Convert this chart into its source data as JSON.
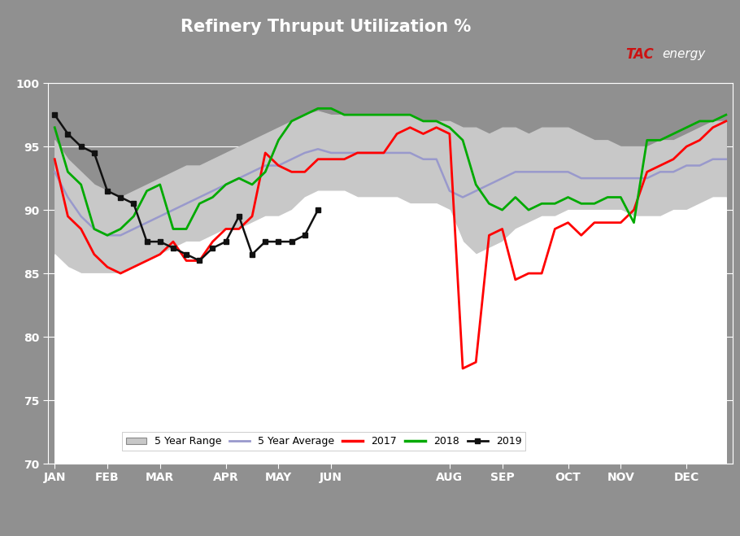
{
  "title": "Refinery Thruput Utilization %",
  "ylim": [
    70,
    100
  ],
  "yticks": [
    70,
    75,
    80,
    85,
    90,
    95,
    100
  ],
  "months": [
    "JAN",
    "FEB",
    "MAR",
    "APR",
    "MAY",
    "JUN",
    "AUG",
    "SEP",
    "OCT",
    "NOV",
    "DEC"
  ],
  "month_positions": [
    1,
    5,
    9,
    14,
    18,
    22,
    31,
    35,
    40,
    44,
    49
  ],
  "x": [
    1,
    2,
    3,
    4,
    5,
    6,
    7,
    8,
    9,
    10,
    11,
    12,
    13,
    14,
    15,
    16,
    17,
    18,
    19,
    20,
    21,
    22,
    23,
    24,
    25,
    26,
    27,
    28,
    29,
    30,
    31,
    32,
    33,
    34,
    35,
    36,
    37,
    38,
    39,
    40,
    41,
    42,
    43,
    44,
    45,
    46,
    47,
    48,
    49,
    50,
    51,
    52
  ],
  "range_high": [
    95.5,
    94.0,
    93.0,
    92.0,
    91.5,
    91.0,
    91.5,
    92.0,
    92.5,
    93.0,
    93.5,
    93.5,
    94.0,
    94.5,
    95.0,
    95.5,
    96.0,
    96.5,
    97.0,
    97.5,
    97.8,
    97.5,
    97.5,
    97.5,
    97.5,
    97.5,
    97.5,
    97.5,
    97.0,
    97.0,
    97.0,
    96.5,
    96.5,
    96.0,
    96.5,
    96.5,
    96.0,
    96.5,
    96.5,
    96.5,
    96.0,
    95.5,
    95.5,
    95.0,
    95.0,
    95.0,
    95.5,
    95.5,
    96.0,
    96.5,
    97.0,
    97.0
  ],
  "range_low": [
    86.5,
    85.5,
    85.0,
    85.0,
    85.0,
    85.0,
    85.5,
    86.0,
    86.5,
    87.0,
    87.5,
    87.5,
    88.0,
    88.5,
    88.5,
    89.0,
    89.5,
    89.5,
    90.0,
    91.0,
    91.5,
    91.5,
    91.5,
    91.0,
    91.0,
    91.0,
    91.0,
    90.5,
    90.5,
    90.5,
    90.0,
    87.5,
    86.5,
    87.0,
    87.5,
    88.5,
    89.0,
    89.5,
    89.5,
    90.0,
    90.0,
    90.0,
    90.0,
    90.0,
    89.5,
    89.5,
    89.5,
    90.0,
    90.0,
    90.5,
    91.0,
    91.0
  ],
  "avg_5yr": [
    93.0,
    91.0,
    89.5,
    88.5,
    88.0,
    88.0,
    88.5,
    89.0,
    89.5,
    90.0,
    90.5,
    91.0,
    91.5,
    92.0,
    92.5,
    93.0,
    93.5,
    93.5,
    94.0,
    94.5,
    94.8,
    94.5,
    94.5,
    94.5,
    94.5,
    94.5,
    94.5,
    94.5,
    94.0,
    94.0,
    91.5,
    91.0,
    91.5,
    92.0,
    92.5,
    93.0,
    93.0,
    93.0,
    93.0,
    93.0,
    92.5,
    92.5,
    92.5,
    92.5,
    92.5,
    92.5,
    93.0,
    93.0,
    93.5,
    93.5,
    94.0,
    94.0
  ],
  "y2017": [
    94.0,
    89.5,
    88.5,
    86.5,
    85.5,
    85.0,
    85.5,
    86.0,
    86.5,
    87.5,
    86.0,
    86.0,
    87.5,
    88.5,
    88.5,
    89.5,
    94.5,
    93.5,
    93.0,
    93.0,
    94.0,
    94.0,
    94.0,
    94.5,
    94.5,
    94.5,
    96.0,
    96.5,
    96.0,
    96.5,
    96.0,
    77.5,
    78.0,
    88.0,
    88.5,
    84.5,
    85.0,
    85.0,
    88.5,
    89.0,
    88.0,
    89.0,
    89.0,
    89.0,
    90.0,
    93.0,
    93.5,
    94.0,
    95.0,
    95.5,
    96.5,
    97.0
  ],
  "y2018": [
    96.5,
    93.0,
    92.0,
    88.5,
    88.0,
    88.5,
    89.5,
    91.5,
    92.0,
    88.5,
    88.5,
    90.5,
    91.0,
    92.0,
    92.5,
    92.0,
    93.0,
    95.5,
    97.0,
    97.5,
    98.0,
    98.0,
    97.5,
    97.5,
    97.5,
    97.5,
    97.5,
    97.5,
    97.0,
    97.0,
    96.5,
    95.5,
    92.0,
    90.5,
    90.0,
    91.0,
    90.0,
    90.5,
    90.5,
    91.0,
    90.5,
    90.5,
    91.0,
    91.0,
    89.0,
    95.5,
    95.5,
    96.0,
    96.5,
    97.0,
    97.0,
    97.5
  ],
  "y2019": [
    97.5,
    96.0,
    95.0,
    94.5,
    91.5,
    91.0,
    90.5,
    87.5,
    87.5,
    87.0,
    86.5,
    86.0,
    87.0,
    87.5,
    89.5,
    86.5,
    87.5,
    87.5,
    87.5,
    88.0,
    90.0,
    null,
    null,
    null,
    null,
    null,
    null,
    null,
    null,
    null,
    null,
    null,
    null,
    null,
    null,
    null,
    null,
    null,
    null,
    null,
    null,
    null,
    null,
    null,
    null,
    null,
    null,
    null,
    null,
    null,
    null,
    null
  ],
  "color_range_fill": "#c8c8c8",
  "color_avg": "#9999cc",
  "color_2017": "#ff0000",
  "color_2018": "#00aa00",
  "color_2019": "#111111",
  "plot_bg_gray": "#909090",
  "header_bg": "#909090",
  "blue_bar": "#1a5fa8",
  "white": "#ffffff",
  "legend_bg": "#ffffff"
}
